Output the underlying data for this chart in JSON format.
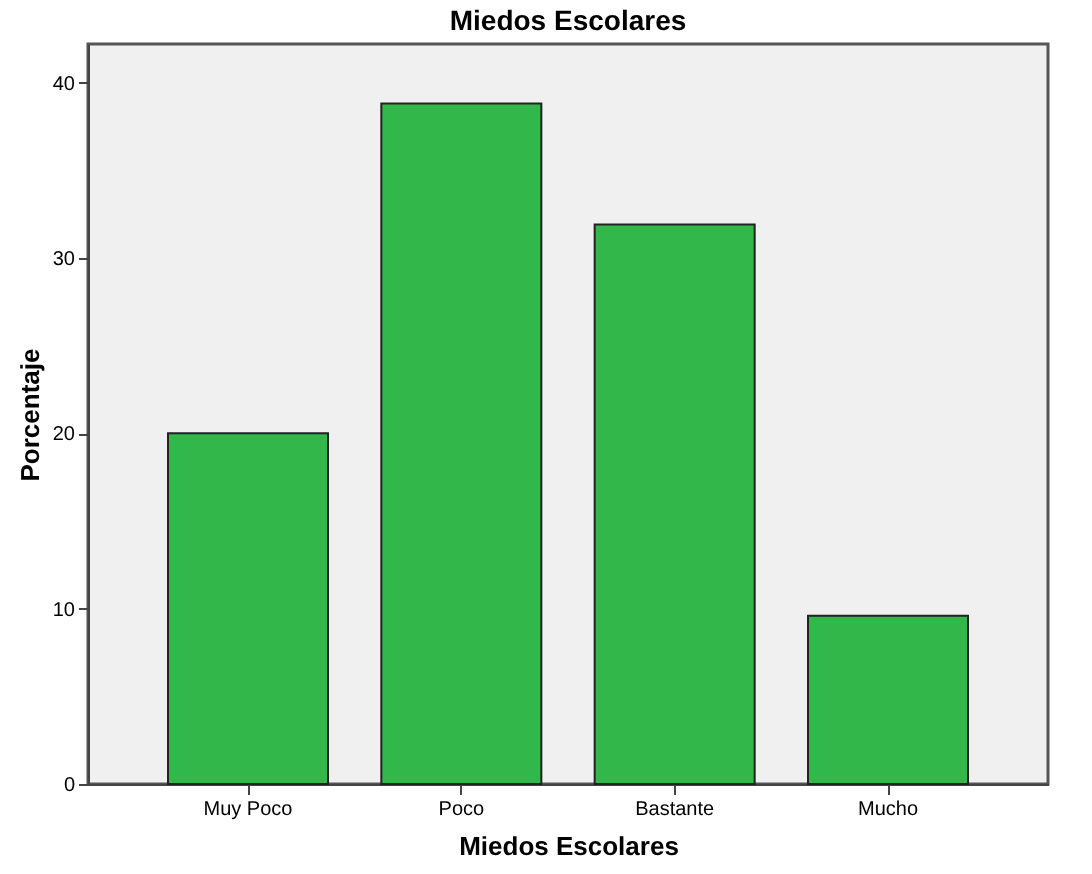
{
  "chart_data": {
    "type": "bar",
    "title": "Miedos Escolares",
    "xlabel": "Miedos Escolares",
    "ylabel": "Porcentaje",
    "categories": [
      "Muy Poco",
      "Poco",
      "Bastante",
      "Mucho"
    ],
    "values": [
      20.0,
      38.8,
      31.9,
      9.6
    ],
    "color": "#31b74a",
    "ylim": [
      0,
      42.2
    ],
    "yticks": [
      0,
      10,
      20,
      30,
      40
    ],
    "grid": false
  }
}
